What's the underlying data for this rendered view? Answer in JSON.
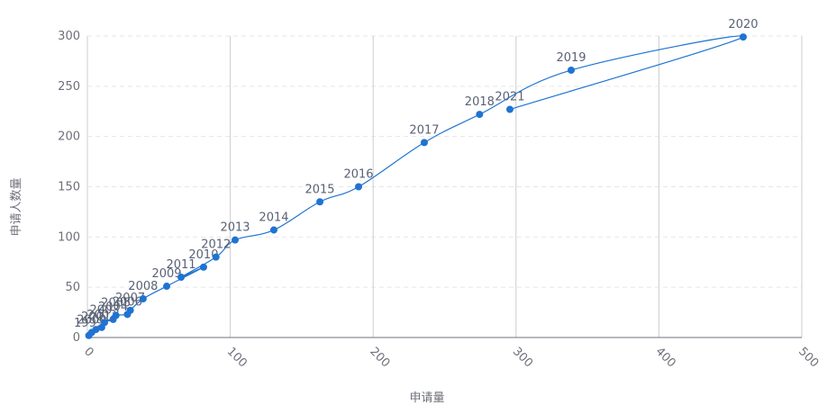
{
  "chart_data": {
    "type": "scatter-line",
    "x_label": "申请量",
    "y_label": "申请人数量",
    "series": [
      {
        "color": "#1f73d2",
        "point_labels": [
          "1999",
          "2000",
          "2001",
          "2002",
          "2003",
          "2004",
          "2005",
          "2006",
          "2007",
          "2008",
          "2009",
          "2010",
          "2011",
          "2012",
          "2013",
          "2014",
          "2015",
          "2016",
          "2017",
          "2018",
          "2019",
          "2020",
          "2021"
        ],
        "x": [
          1,
          3,
          6,
          10,
          12,
          18,
          20,
          28,
          30,
          39,
          55.5,
          81.3,
          65.6,
          90,
          103.4,
          130.5,
          162.7,
          189.8,
          235.8,
          274.5,
          338.6,
          459,
          295.7
        ],
        "values": [
          2,
          5,
          8,
          10,
          15,
          18,
          22,
          23,
          27,
          38.5,
          51,
          70,
          60,
          80,
          97,
          107,
          135,
          150,
          194,
          222,
          266,
          299,
          227
        ]
      }
    ],
    "xlim": [
      0,
      500
    ],
    "xticks": [
      0,
      100,
      200,
      300,
      400,
      500
    ],
    "ylim": [
      0,
      300
    ],
    "yticks": [
      0,
      50,
      100,
      150,
      200,
      250,
      300
    ],
    "grid": true
  }
}
